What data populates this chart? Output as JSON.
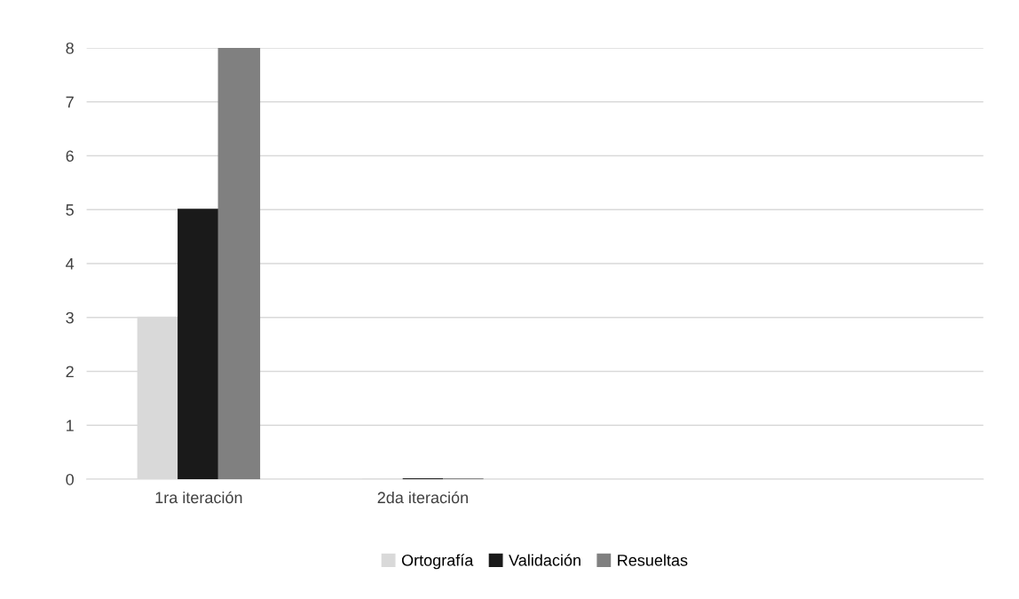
{
  "chart_data": {
    "type": "bar",
    "categories": [
      "1ra iteración",
      "2da iteración",
      null,
      null
    ],
    "series": [
      {
        "name": "Ortografía",
        "color": "#d9d9d9",
        "values": [
          3,
          0,
          null,
          null
        ]
      },
      {
        "name": "Validación",
        "color": "#1a1a1a",
        "values": [
          5,
          0,
          null,
          null
        ]
      },
      {
        "name": "Resueltas",
        "color": "#808080",
        "values": [
          8,
          0,
          null,
          null
        ]
      }
    ],
    "ylim": [
      0,
      8
    ],
    "yticks": [
      0,
      1,
      2,
      3,
      4,
      5,
      6,
      7,
      8
    ],
    "grid": "y",
    "legend": "bottom"
  }
}
